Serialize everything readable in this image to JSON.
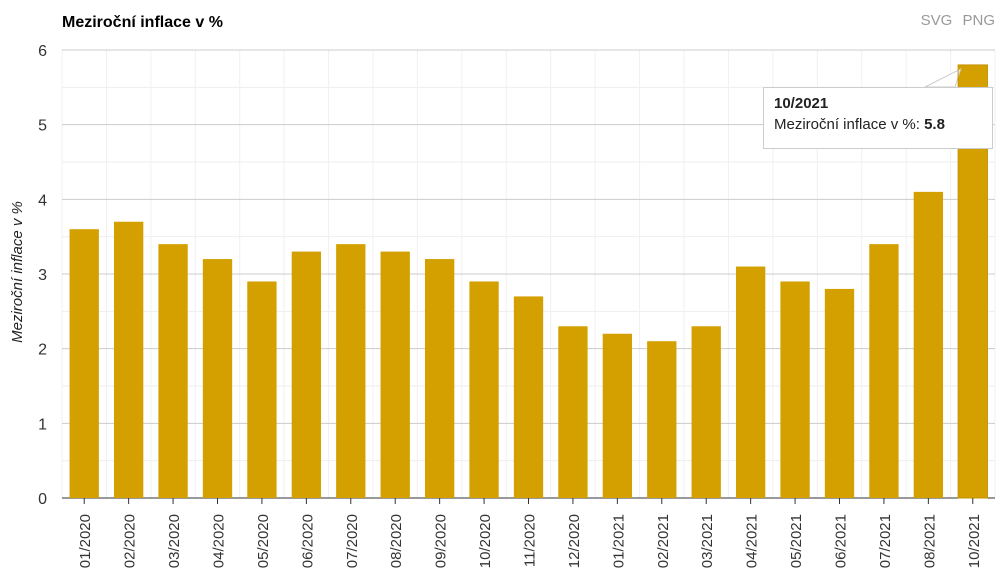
{
  "title": "Meziroční inflace v %",
  "exports": [
    "SVG",
    "PNG"
  ],
  "chart_data": {
    "type": "bar",
    "title": "Meziroční inflace v %",
    "ylabel": "Meziroční inflace v %",
    "xlabel": "",
    "ylim": [
      0,
      6
    ],
    "yticks": [
      0,
      1,
      2,
      3,
      4,
      5,
      6
    ],
    "grid": true,
    "color": "#d4a000",
    "categories": [
      "01/2020",
      "02/2020",
      "03/2020",
      "04/2020",
      "05/2020",
      "06/2020",
      "07/2020",
      "08/2020",
      "09/2020",
      "10/2020",
      "11/2020",
      "12/2020",
      "01/2021",
      "02/2021",
      "03/2021",
      "04/2021",
      "05/2021",
      "06/2021",
      "07/2021",
      "08/2021",
      "10/2021"
    ],
    "values": [
      3.6,
      3.7,
      3.4,
      3.2,
      2.9,
      3.3,
      3.4,
      3.3,
      3.2,
      2.9,
      2.7,
      2.3,
      2.2,
      2.1,
      2.3,
      3.1,
      2.9,
      2.8,
      3.4,
      4.1,
      5.8
    ]
  },
  "tooltip": {
    "category": "10/2021",
    "label": "Meziroční inflace v %:",
    "value": "5.8"
  }
}
